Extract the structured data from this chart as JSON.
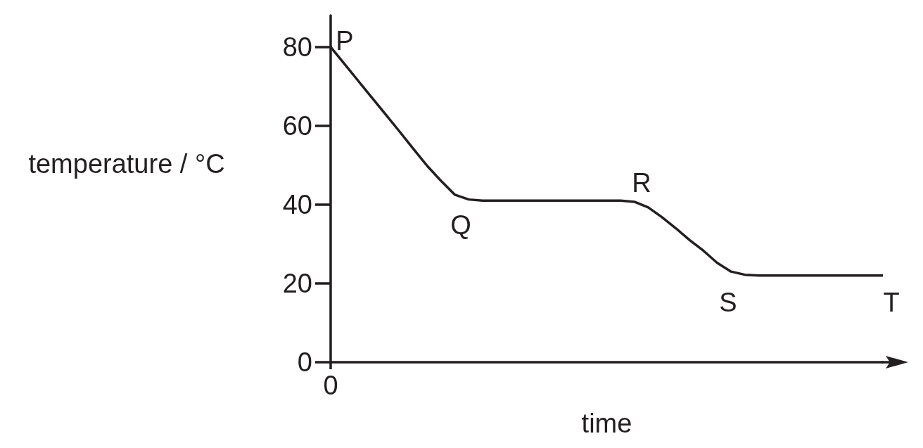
{
  "chart_data": {
    "type": "line",
    "xlabel": "time",
    "ylabel": "temperature / °C",
    "categories": [
      "0",
      null,
      null,
      null,
      null,
      null,
      null,
      null,
      null,
      null,
      null,
      null,
      null,
      null,
      null,
      null,
      null,
      null,
      null,
      null,
      null,
      null,
      null,
      null,
      null,
      null,
      null,
      null,
      null,
      null,
      null,
      null,
      null,
      null,
      null,
      null,
      null,
      null,
      null,
      null,
      null
    ],
    "series": [
      {
        "color": "#231f20",
        "values": [
          80,
          75.7,
          71.4,
          67.1,
          62.8,
          58.5,
          54.1,
          49.8,
          46,
          42.5,
          41.3,
          41,
          41,
          41,
          41,
          41,
          41,
          41,
          41,
          41,
          41,
          41,
          40.7,
          39.3,
          36.8,
          34,
          31,
          28.3,
          25.2,
          23,
          22.2,
          22,
          22,
          22,
          22,
          22,
          22,
          22,
          22,
          22,
          22
        ]
      }
    ],
    "ylim": [
      0,
      88
    ],
    "yticks": [
      0,
      20,
      40,
      60,
      80
    ],
    "annotations": [
      "P",
      "Q",
      "R",
      "S",
      "T"
    ],
    "grid": false,
    "marker": "none",
    "line_style": "solid",
    "relative": false
  }
}
